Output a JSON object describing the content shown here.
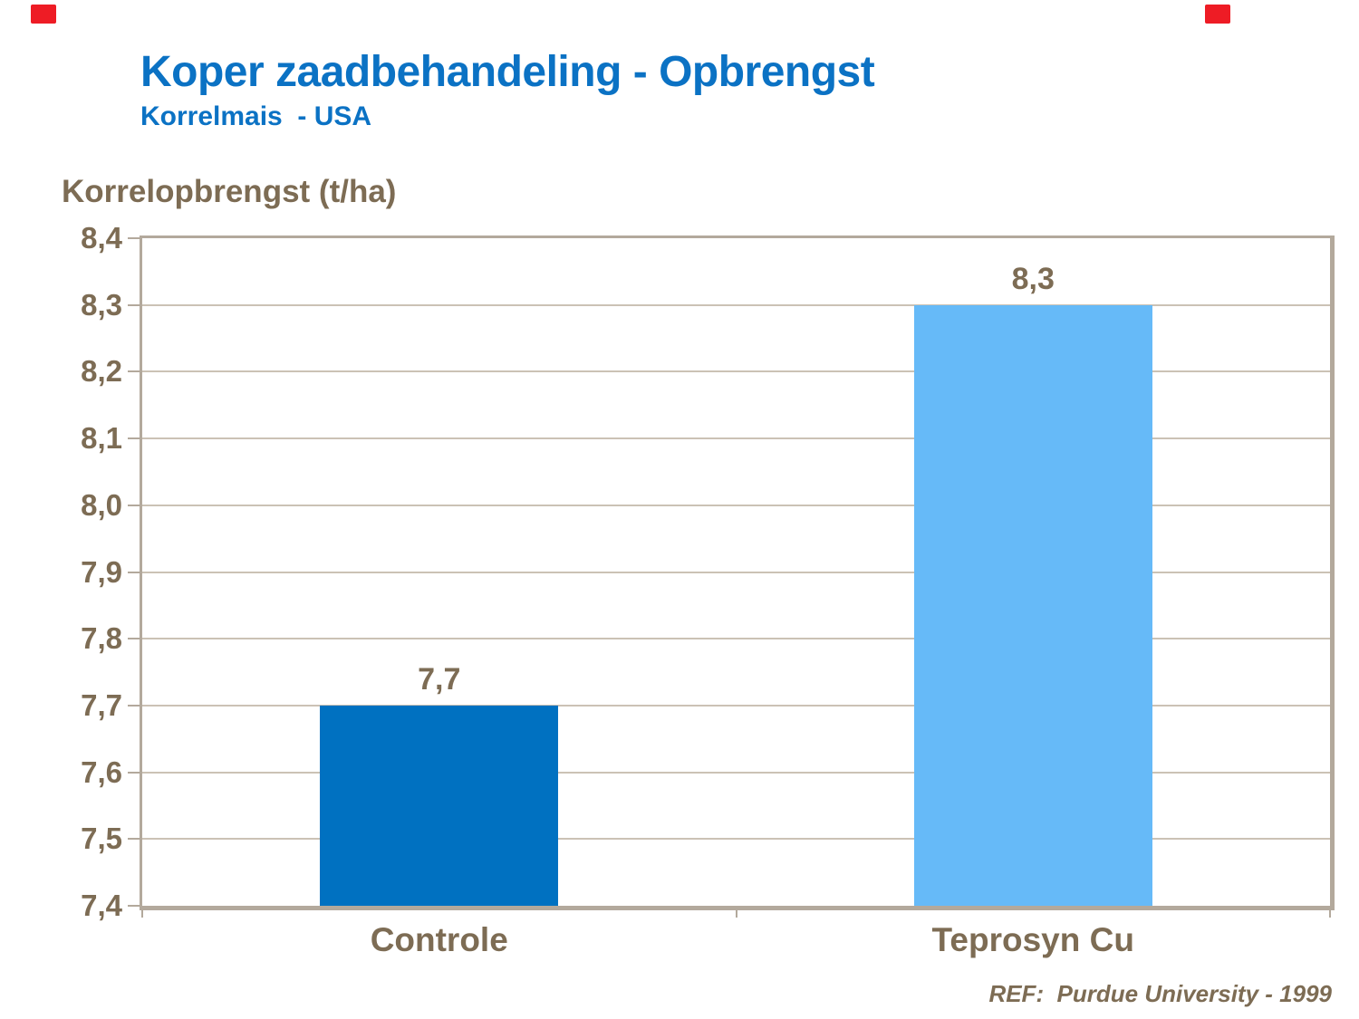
{
  "header": {
    "title": "Koper zaadbehandeling - Opbrengst",
    "subtitle": "Korrelmais  - USA",
    "title_color": "#0b72c4"
  },
  "footer": {
    "ref": "REF:  Purdue University - 1999"
  },
  "decorations": {
    "red_accent_color": "#ee1c25",
    "positions": [
      "top-left",
      "top-right"
    ]
  },
  "chart_data": {
    "type": "bar",
    "axis_title": "Korrelopbrengst (t/ha)",
    "categories": [
      "Controle",
      "Teprosyn Cu"
    ],
    "values": [
      7.7,
      8.3
    ],
    "value_labels": [
      "7,7",
      "8,3"
    ],
    "bar_colors": [
      "#0071c1",
      "#66baf8"
    ],
    "ylim": [
      7.4,
      8.4
    ],
    "ytick_step": 0.1,
    "ytick_labels": [
      "8,4",
      "8,3",
      "8,2",
      "8,1",
      "8,0",
      "7,9",
      "7,8",
      "7,7",
      "7,6",
      "7,5",
      "7,4"
    ],
    "grid": true,
    "legend": "none",
    "text_color": "#7d6c54",
    "frame_color": "#b3a99c",
    "gridline_color": "#cbc2b5"
  }
}
